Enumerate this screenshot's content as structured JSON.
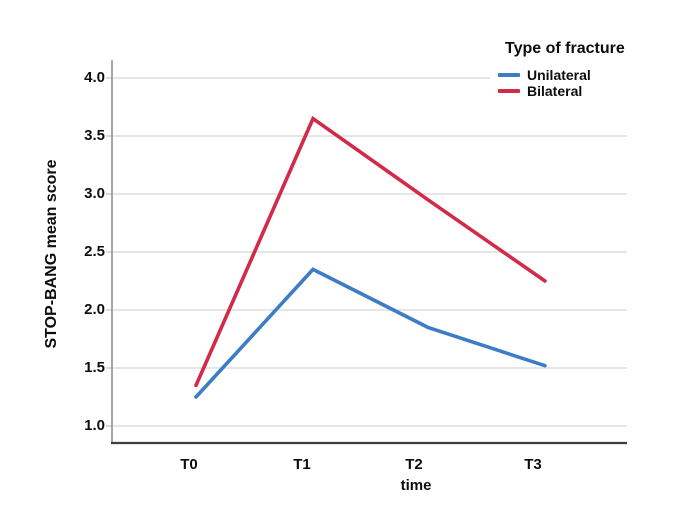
{
  "chart_data": {
    "type": "line",
    "categories": [
      "T0",
      "T1",
      "T2",
      "T3"
    ],
    "series": [
      {
        "name": "Unilateral",
        "color": "#3c7dc6",
        "values": [
          1.25,
          2.35,
          1.85,
          1.52
        ]
      },
      {
        "name": "Bilateral",
        "color": "#d22b4a",
        "values": [
          1.35,
          3.65,
          2.95,
          2.25
        ]
      }
    ],
    "title": "",
    "xlabel": "time",
    "ylabel": "STOP-BANG mean score",
    "y_ticks": [
      4.0,
      3.5,
      3.0,
      2.5,
      2.0,
      1.5,
      1.0
    ],
    "y_tick_labels": [
      "4.0",
      "3.5",
      "3.0",
      "2.5",
      "2.0",
      "1.5",
      "1.0"
    ],
    "ylim": [
      0.85,
      4.15
    ],
    "grid": "horizontal-only",
    "legend": {
      "title": "Type of fracture",
      "position": "top-right",
      "entries": [
        "Unilateral",
        "Bilateral"
      ]
    },
    "colors": {
      "gridline": "#d8d8d8",
      "y_axis_line": "#909090",
      "x_axis_line": "#3d3d3d",
      "tick_mark": "#b5b5b5",
      "background": "#ffffff"
    }
  }
}
